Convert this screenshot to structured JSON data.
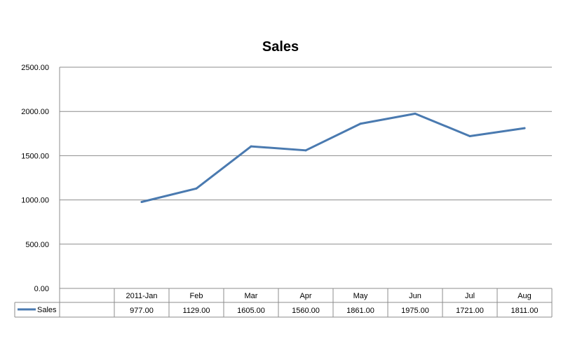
{
  "chart_data": {
    "type": "line",
    "title": "Sales",
    "xlabel": "",
    "ylabel": "",
    "ylim": [
      0,
      2500
    ],
    "yticks": [
      "0.00",
      "500.00",
      "1000.00",
      "1500.00",
      "2000.00",
      "2500.00"
    ],
    "grid": true,
    "legend": "data-table",
    "categories": [
      "2011-Jan",
      "Feb",
      "Mar",
      "Apr",
      "May",
      "Jun",
      "Jul",
      "Aug"
    ],
    "series": [
      {
        "name": "Sales",
        "values": [
          977,
          1129,
          1605,
          1560,
          1861,
          1975,
          1721,
          1811
        ],
        "labels": [
          "977.00",
          "1129.00",
          "1605.00",
          "1560.00",
          "1861.00",
          "1975.00",
          "1721.00",
          "1811.00"
        ],
        "color": "#4a7ab0"
      }
    ],
    "colors": {
      "grid": "#8c8c8c",
      "axis": "#8c8c8c"
    }
  }
}
